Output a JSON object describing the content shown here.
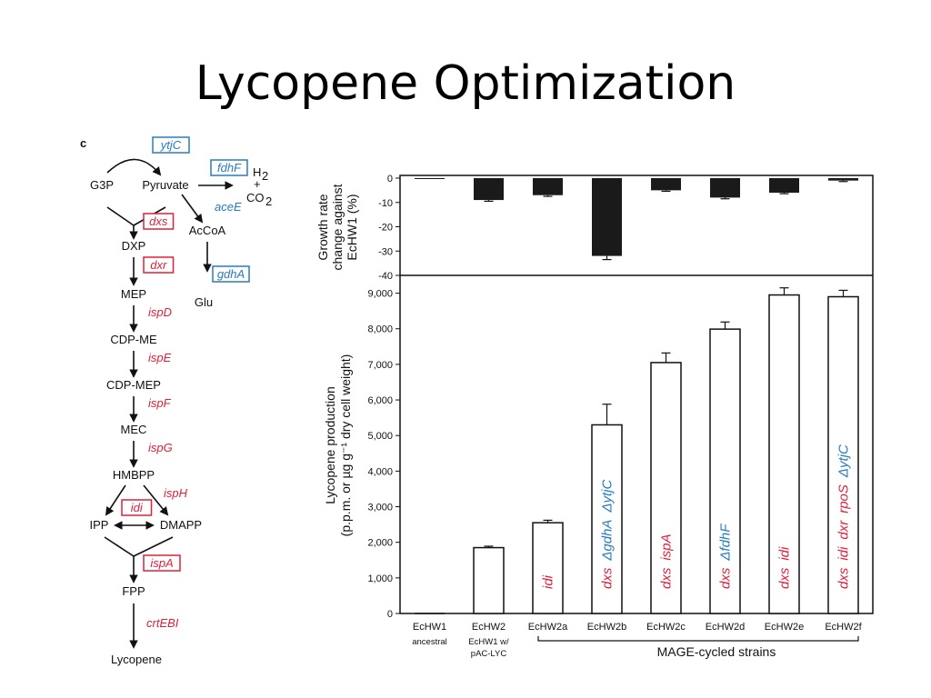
{
  "slide": {
    "title": "Lycopene Optimization"
  },
  "pathway": {
    "panel_label": "c",
    "nodes": [
      "G3P",
      "Pyruvate",
      "AcCoA",
      "Glu",
      "DXP",
      "MEP",
      "CDP-ME",
      "CDP-MEP",
      "MEC",
      "HMBPP",
      "IPP",
      "DMAPP",
      "FPP",
      "Lycopene"
    ],
    "h2": "H",
    "h2_sub": "2",
    "plus": "+",
    "co2": "CO",
    "co2_sub": "2",
    "genes_boxed_blue": [
      "ytjC",
      "fdhF",
      "gdhA"
    ],
    "genes_plain_blue": [
      "aceE"
    ],
    "genes_boxed_red": [
      "dxs",
      "dxr",
      "idi",
      "ispA"
    ],
    "genes_plain_red": [
      "ispD",
      "ispE",
      "ispF",
      "ispG",
      "ispH",
      "crtEBI"
    ]
  },
  "chart_data": [
    {
      "type": "bar",
      "name_hint": "growth",
      "ylabel_lines": [
        "Growth rate",
        "change against",
        "EcHW1 (%)"
      ],
      "ylim": [
        -40,
        0
      ],
      "yticks": [
        0,
        -10,
        -20,
        -30,
        -40
      ],
      "categories": [
        "EcHW1",
        "EcHW2",
        "EcHW2a",
        "EcHW2b",
        "EcHW2c",
        "EcHW2d",
        "EcHW2e",
        "EcHW2f"
      ],
      "values": [
        0,
        -9,
        -7,
        -32,
        -5,
        -8,
        -6,
        -1
      ],
      "errors": [
        0,
        0.5,
        0.5,
        1.5,
        0.4,
        0.5,
        0.4,
        0.4
      ],
      "color": "#1a1a1a"
    },
    {
      "type": "bar",
      "name_hint": "lycopene",
      "ylabel_lines": [
        "Lycopene production",
        "(p.p.m. or µg g⁻¹ dry cell weight)"
      ],
      "ylim": [
        0,
        9500
      ],
      "yticks": [
        0,
        1000,
        2000,
        3000,
        4000,
        5000,
        6000,
        7000,
        8000,
        9000
      ],
      "ytick_labels": [
        "0",
        "1,000",
        "2,000",
        "3,000",
        "4,000",
        "5,000",
        "6,000",
        "7,000",
        "8,000",
        "9,000"
      ],
      "categories": [
        "EcHW1",
        "EcHW2",
        "EcHW2a",
        "EcHW2b",
        "EcHW2c",
        "EcHW2d",
        "EcHW2e",
        "EcHW2f"
      ],
      "values": [
        0,
        1850,
        2550,
        5300,
        7050,
        7990,
        8950,
        8900
      ],
      "errors": [
        0,
        40,
        70,
        580,
        270,
        200,
        200,
        180
      ],
      "color": "#ffffff",
      "category_sublabels": [
        "ancestral",
        "EcHW1 w/",
        "",
        "",
        "",
        "",
        "",
        ""
      ],
      "category_sublabels2": [
        "",
        "pAC-LYC",
        "",
        "",
        "",
        "",
        "",
        ""
      ],
      "bar_annotations": [
        [],
        [],
        [
          {
            "text": "idi",
            "color": "red"
          }
        ],
        [
          {
            "text": "dxs",
            "color": "red"
          },
          {
            "text": "ΔgdhA",
            "color": "blue"
          },
          {
            "text": "ΔytjC",
            "color": "blue"
          }
        ],
        [
          {
            "text": "dxs",
            "color": "red"
          },
          {
            "text": "ispA",
            "color": "red"
          }
        ],
        [
          {
            "text": "dxs",
            "color": "red"
          },
          {
            "text": "ΔfdhF",
            "color": "blue"
          }
        ],
        [
          {
            "text": "dxs",
            "color": "red"
          },
          {
            "text": "idi",
            "color": "red"
          }
        ],
        [
          {
            "text": "dxs",
            "color": "red"
          },
          {
            "text": "idi",
            "color": "red"
          },
          {
            "text": "dxr",
            "color": "red"
          },
          {
            "text": "rpoS",
            "color": "red"
          },
          {
            "text": "ΔytjC",
            "color": "blue"
          }
        ]
      ],
      "group_label": "MAGE-cycled strains"
    }
  ],
  "colors": {
    "red": "#e0203a",
    "blue": "#2a7bbf",
    "black": "#111111"
  }
}
